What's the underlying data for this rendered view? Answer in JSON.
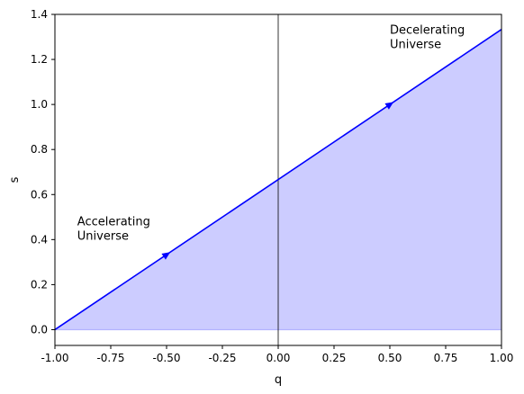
{
  "chart_data": {
    "type": "line",
    "xlabel": "q",
    "ylabel": "s",
    "xlim": [
      -1.0,
      1.0
    ],
    "ylim": [
      -0.07,
      1.4
    ],
    "xticks": [
      "-1.00",
      "-0.75",
      "-0.50",
      "-0.25",
      "0.00",
      "0.25",
      "0.50",
      "0.75",
      "1.00"
    ],
    "xtick_values": [
      -1.0,
      -0.75,
      -0.5,
      -0.25,
      0.0,
      0.25,
      0.5,
      0.75,
      1.0
    ],
    "yticks": [
      "0.0",
      "0.2",
      "0.4",
      "0.6",
      "0.8",
      "1.0",
      "1.2",
      "1.4"
    ],
    "ytick_values": [
      0.0,
      0.2,
      0.4,
      0.6,
      0.8,
      1.0,
      1.2,
      1.4
    ],
    "grid": false,
    "series": [
      {
        "x": [
          -1.0,
          1.0
        ],
        "y": [
          0.0,
          1.3333
        ],
        "color": "#0000ff"
      }
    ],
    "fill_under_series": {
      "color": "#ccccff",
      "from_y": 0.0
    },
    "vertical_line": {
      "x": 0.0,
      "color": "#000000"
    },
    "arrows": [
      {
        "x": -0.5,
        "y": 0.3333,
        "color": "#0000ff"
      },
      {
        "x": 0.5,
        "y": 1.0,
        "color": "#0000ff"
      }
    ],
    "annotations": [
      {
        "lines": [
          "Accelerating",
          "Universe"
        ],
        "x": -0.9,
        "y": 0.4
      },
      {
        "lines": [
          "Decelerating",
          "Universe"
        ],
        "x": 0.5,
        "y": 1.25
      }
    ]
  }
}
